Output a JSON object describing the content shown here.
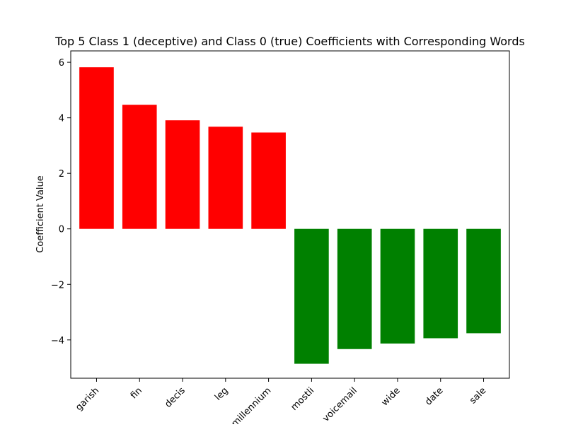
{
  "chart_data": {
    "type": "bar",
    "title": "Top 5 Class 1 (deceptive)  and Class 0 (true) Coefficients with Corresponding Words",
    "xlabel": "",
    "ylabel": "Coefficient Value",
    "categories": [
      "garish",
      "fin",
      "decis",
      "leg",
      "millennium",
      "mostli",
      "voicemail",
      "wide",
      "date",
      "sale"
    ],
    "values": [
      5.82,
      4.47,
      3.91,
      3.68,
      3.47,
      -4.86,
      -4.33,
      -4.13,
      -3.94,
      -3.76
    ],
    "bar_colors": [
      "#ff0000",
      "#ff0000",
      "#ff0000",
      "#ff0000",
      "#ff0000",
      "#008000",
      "#008000",
      "#008000",
      "#008000",
      "#008000"
    ],
    "ylim": [
      -5.38,
      6.41
    ],
    "yticks": [
      -4,
      -2,
      0,
      2,
      4,
      6
    ],
    "ytick_labels": [
      "−4",
      "−2",
      "0",
      "2",
      "4",
      "6"
    ],
    "xtick_rotation": -45,
    "grid": false,
    "legend": "none"
  }
}
